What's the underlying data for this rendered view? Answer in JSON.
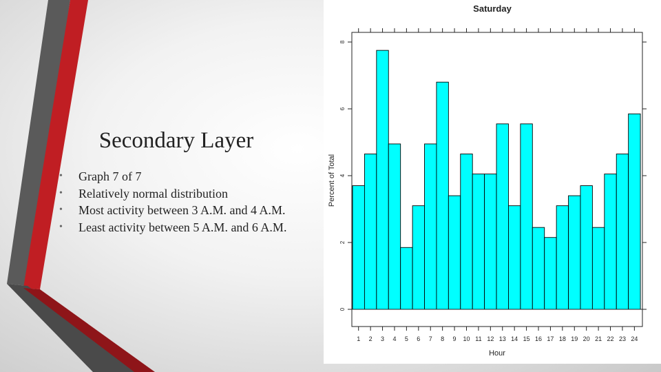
{
  "slide": {
    "title": "Secondary Layer",
    "bullets": [
      "Graph 7 of 7",
      "Relatively normal distribution",
      "Most activity between 3 A.M. and 4 A.M.",
      "Least activity between 5 A.M. and 6 A.M."
    ]
  },
  "colors": {
    "bar_fill": "#00FFFF",
    "accent_red": "#C01E23",
    "accent_gray": "#5A5A5A"
  },
  "chart_data": {
    "type": "bar",
    "title": "Saturday",
    "xlabel": "Hour",
    "ylabel": "Percent of Total",
    "categories": [
      "1",
      "2",
      "3",
      "4",
      "5",
      "6",
      "7",
      "8",
      "9",
      "10",
      "11",
      "12",
      "13",
      "14",
      "15",
      "16",
      "17",
      "18",
      "19",
      "20",
      "21",
      "22",
      "23",
      "24"
    ],
    "values": [
      3.7,
      4.65,
      7.75,
      4.95,
      1.85,
      3.1,
      4.95,
      6.8,
      3.4,
      4.65,
      4.05,
      4.05,
      5.55,
      3.1,
      5.55,
      2.45,
      2.15,
      3.1,
      3.4,
      3.7,
      2.45,
      4.05,
      4.65,
      5.85
    ],
    "yticks": [
      0,
      2,
      4,
      6,
      8
    ],
    "ylim": [
      0,
      8
    ],
    "grid": false,
    "legend": "none"
  }
}
